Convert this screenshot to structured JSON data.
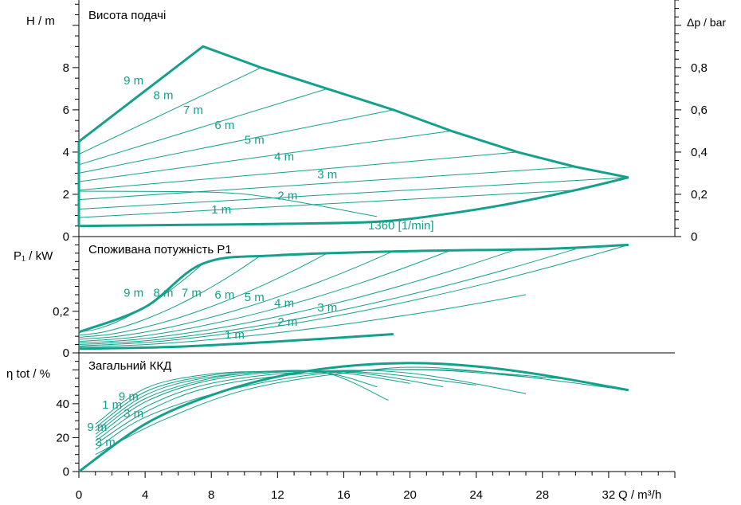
{
  "colors": {
    "curve": "#14a08a",
    "axis": "#000000",
    "text": "#000000",
    "background": "#ffffff"
  },
  "chart_data": [
    {
      "type": "line",
      "title": "Висота подачі",
      "ylabel": "H / m",
      "ylabel_right": "Δp / bar",
      "xlim": [
        0,
        36
      ],
      "ylim": [
        0,
        11.2
      ],
      "yticks": [
        0,
        2,
        4,
        6,
        8
      ],
      "yticklabels": [
        "0",
        "2",
        "4",
        "6",
        "8"
      ],
      "ylim_right": [
        0,
        1.12
      ],
      "yticks_right": [
        0,
        0.2,
        0.4,
        0.6,
        0.8
      ],
      "yticklabels_right": [
        "0",
        "0,2",
        "0,4",
        "0,6",
        "0,8"
      ],
      "grid": false,
      "envelope": [
        {
          "x": 0,
          "y": 4.5
        },
        {
          "x": 7.5,
          "y": 9.0
        },
        {
          "x": 11,
          "y": 8.0
        },
        {
          "x": 15,
          "y": 7.0
        },
        {
          "x": 19,
          "y": 6.0
        },
        {
          "x": 22.5,
          "y": 5.0
        },
        {
          "x": 26.5,
          "y": 4.0
        },
        {
          "x": 30,
          "y": 3.3
        },
        {
          "x": 33.2,
          "y": 2.8
        },
        {
          "x": 30,
          "y": 2.2
        },
        {
          "x": 26,
          "y": 1.55
        },
        {
          "x": 22,
          "y": 1.05
        },
        {
          "x": 18,
          "y": 0.7
        },
        {
          "x": 12,
          "y": 0.6
        },
        {
          "x": 6,
          "y": 0.55
        },
        {
          "x": 0,
          "y": 0.5
        }
      ],
      "series": [
        {
          "name": "9 m",
          "x": [
            0,
            7.5
          ],
          "y": [
            4.5,
            9.0
          ]
        },
        {
          "name": "8 m",
          "x": [
            0,
            11
          ],
          "y": [
            3.9,
            8.0
          ]
        },
        {
          "name": "7 m",
          "x": [
            0,
            15
          ],
          "y": [
            3.4,
            7.0
          ]
        },
        {
          "name": "6 m",
          "x": [
            0,
            19
          ],
          "y": [
            3.0,
            6.0
          ]
        },
        {
          "name": "5 m",
          "x": [
            0,
            22.5
          ],
          "y": [
            2.6,
            5.0
          ]
        },
        {
          "name": "4 m",
          "x": [
            0,
            26.5
          ],
          "y": [
            2.2,
            4.0
          ]
        },
        {
          "name": "3 m",
          "x": [
            0,
            30
          ],
          "y": [
            1.75,
            3.3
          ]
        },
        {
          "name": "2 m",
          "x": [
            0,
            33.2
          ],
          "y": [
            1.3,
            2.8
          ]
        },
        {
          "name": "1 m",
          "x": [
            0,
            30
          ],
          "y": [
            0.9,
            2.2
          ]
        }
      ],
      "speed_curve": {
        "x": [
          0,
          8,
          12,
          18
        ],
        "y": [
          2.15,
          2.1,
          1.8,
          0.95
        ]
      },
      "curve_labels": [
        {
          "text": "9 m",
          "x": 2.7,
          "y": 7.2
        },
        {
          "text": "8 m",
          "x": 4.5,
          "y": 6.5
        },
        {
          "text": "7 m",
          "x": 6.3,
          "y": 5.8
        },
        {
          "text": "6 m",
          "x": 8.2,
          "y": 5.1
        },
        {
          "text": "5 m",
          "x": 10.0,
          "y": 4.4
        },
        {
          "text": "4 m",
          "x": 11.8,
          "y": 3.6
        },
        {
          "text": "3 m",
          "x": 14.4,
          "y": 2.75
        },
        {
          "text": "2 m",
          "x": 12.0,
          "y": 1.75
        },
        {
          "text": "1 m",
          "x": 8.0,
          "y": 1.1
        }
      ],
      "annotation": "1360 [1/min]"
    },
    {
      "type": "line",
      "title": "Споживана потужність P1",
      "ylabel": "P₁ / kW",
      "ylim": [
        0,
        0.56
      ],
      "yticks": [
        0,
        0.2
      ],
      "yticklabels": [
        "0",
        "0,2"
      ],
      "envelope_top": {
        "x": [
          0,
          4,
          7.5,
          12,
          20,
          28,
          33.2
        ],
        "y": [
          0.1,
          0.22,
          0.43,
          0.47,
          0.49,
          0.5,
          0.52
        ]
      },
      "envelope_bottom": {
        "x": [
          0,
          6,
          12,
          19
        ],
        "y": [
          0.02,
          0.03,
          0.055,
          0.09
        ]
      },
      "series": [
        {
          "name": "9 m",
          "x": [
            0,
            7.5
          ],
          "y": [
            0.1,
            0.43
          ]
        },
        {
          "name": "8 m",
          "x": [
            0,
            11
          ],
          "y": [
            0.085,
            0.47
          ]
        },
        {
          "name": "7 m",
          "x": [
            0,
            15
          ],
          "y": [
            0.075,
            0.48
          ]
        },
        {
          "name": "6 m",
          "x": [
            0,
            19
          ],
          "y": [
            0.065,
            0.49
          ]
        },
        {
          "name": "5 m",
          "x": [
            0,
            22.5
          ],
          "y": [
            0.055,
            0.495
          ]
        },
        {
          "name": "4 m",
          "x": [
            0,
            26.5
          ],
          "y": [
            0.047,
            0.5
          ]
        },
        {
          "name": "3 m",
          "x": [
            0,
            30
          ],
          "y": [
            0.04,
            0.5
          ]
        },
        {
          "name": "2 m",
          "x": [
            0,
            33.2
          ],
          "y": [
            0.033,
            0.52
          ]
        },
        {
          "name": "1 m",
          "x": [
            0,
            27
          ],
          "y": [
            0.028,
            0.28
          ]
        }
      ],
      "curve_labels": [
        {
          "text": "9 m",
          "x": 2.7,
          "y": 0.27
        },
        {
          "text": "8 m",
          "x": 4.5,
          "y": 0.27
        },
        {
          "text": "7 m",
          "x": 6.2,
          "y": 0.27
        },
        {
          "text": "6 m",
          "x": 8.2,
          "y": 0.26
        },
        {
          "text": "5 m",
          "x": 10.0,
          "y": 0.25
        },
        {
          "text": "4 m",
          "x": 11.8,
          "y": 0.22
        },
        {
          "text": "3 m",
          "x": 14.4,
          "y": 0.2
        },
        {
          "text": "2 m",
          "x": 12.0,
          "y": 0.13
        },
        {
          "text": "1 m",
          "x": 8.8,
          "y": 0.07
        }
      ]
    },
    {
      "type": "line",
      "title": "Загальний ККД",
      "xlabel": "Q / m³/h",
      "ylabel": "η tot / %",
      "xlim": [
        0,
        36
      ],
      "xticks": [
        0,
        4,
        8,
        12,
        16,
        20,
        24,
        28,
        32
      ],
      "xticklabels": [
        "0",
        "4",
        "8",
        "12",
        "16",
        "20",
        "24",
        "28",
        "32"
      ],
      "ylim": [
        0,
        70
      ],
      "yticks": [
        0,
        20,
        40
      ],
      "yticklabels": [
        "0",
        "20",
        "40"
      ],
      "envelope": {
        "x": [
          0,
          4,
          8,
          12,
          16,
          20,
          24,
          28,
          33.2
        ],
        "y": [
          0,
          28,
          45,
          56,
          62,
          64,
          62,
          57,
          48
        ]
      },
      "series": [
        {
          "name": "9 m",
          "x": [
            1,
            4,
            7.5,
            11,
            15,
            18
          ],
          "y": [
            28,
            49,
            57,
            59,
            58,
            50
          ]
        },
        {
          "name": "8 m",
          "x": [
            1,
            4,
            7.5,
            11,
            15,
            18.7
          ],
          "y": [
            26,
            47,
            56,
            59,
            58,
            42
          ]
        },
        {
          "name": "7 m",
          "x": [
            1,
            4,
            7.5,
            12,
            16,
            20
          ],
          "y": [
            24,
            45,
            55,
            59,
            58,
            52
          ]
        },
        {
          "name": "6 m",
          "x": [
            1,
            4,
            8,
            12,
            17,
            22
          ],
          "y": [
            22,
            43,
            55,
            59,
            58,
            50
          ]
        },
        {
          "name": "5 m",
          "x": [
            1,
            4,
            8,
            13,
            18,
            24
          ],
          "y": [
            20,
            41,
            54,
            59,
            58,
            51
          ]
        },
        {
          "name": "4 m",
          "x": [
            1,
            4,
            8,
            14,
            20,
            27
          ],
          "y": [
            18,
            38,
            52,
            59,
            58,
            46
          ]
        },
        {
          "name": "3 m",
          "x": [
            1,
            4,
            8,
            14,
            21,
            28
          ],
          "y": [
            16,
            35,
            50,
            58,
            60,
            55
          ]
        },
        {
          "name": "2 m",
          "x": [
            1,
            4,
            9,
            15,
            22,
            30
          ],
          "y": [
            13,
            32,
            48,
            58,
            60,
            54
          ]
        },
        {
          "name": "1 m",
          "x": [
            1,
            5,
            10,
            16,
            22,
            33.2
          ],
          "y": [
            10,
            30,
            48,
            58,
            61,
            48
          ]
        }
      ],
      "curve_labels": [
        {
          "text": "1 m",
          "x": 1.4,
          "y": 37
        },
        {
          "text": "9 m",
          "x": 2.4,
          "y": 42
        },
        {
          "text": "3 m",
          "x": 2.7,
          "y": 32
        },
        {
          "text": "9 m",
          "x": 0.5,
          "y": 24
        },
        {
          "text": "3 m",
          "x": 1.0,
          "y": 15
        }
      ]
    }
  ]
}
